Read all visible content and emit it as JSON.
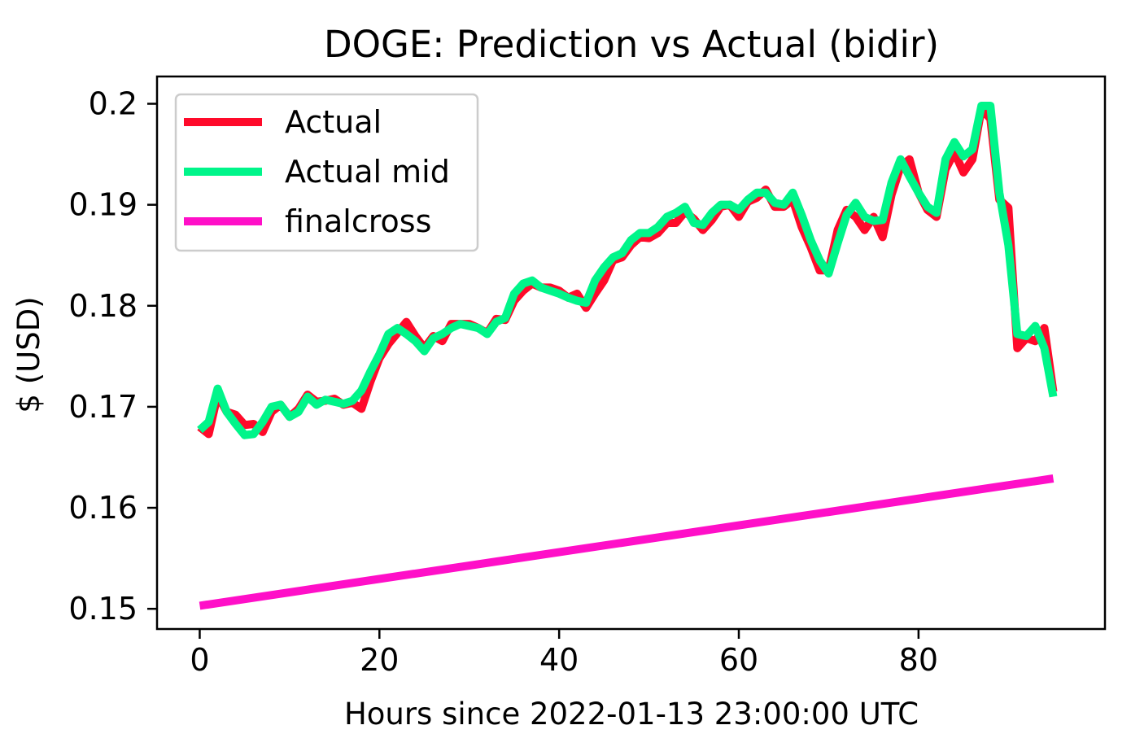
{
  "chart_data": {
    "type": "line",
    "title": "DOGE: Prediction vs Actual (bidir)",
    "xlabel": "Hours since 2022-01-13 23:00:00 UTC",
    "ylabel": "$ (USD)",
    "xlim": [
      -4.75,
      100.75
    ],
    "ylim": [
      0.148,
      0.2027
    ],
    "xticks": [
      0,
      20,
      40,
      60,
      80
    ],
    "xtick_labels": [
      "0",
      "20",
      "40",
      "60",
      "80"
    ],
    "yticks": [
      0.15,
      0.16,
      0.17,
      0.18,
      0.19,
      0.2
    ],
    "ytick_labels": [
      "0.15",
      "0.16",
      "0.17",
      "0.18",
      "0.19",
      "0.2"
    ],
    "grid": false,
    "legend_position": "upper-left",
    "series": [
      {
        "name": "Actual",
        "color": "#ff0a2a",
        "x": [
          0,
          1,
          2,
          3,
          4,
          5,
          6,
          7,
          8,
          9,
          10,
          11,
          12,
          13,
          14,
          15,
          16,
          17,
          18,
          19,
          20,
          21,
          22,
          23,
          24,
          25,
          26,
          27,
          28,
          29,
          30,
          31,
          32,
          33,
          34,
          35,
          36,
          37,
          38,
          39,
          40,
          41,
          42,
          43,
          44,
          45,
          46,
          47,
          48,
          49,
          50,
          51,
          52,
          53,
          54,
          55,
          56,
          57,
          58,
          59,
          60,
          61,
          62,
          63,
          64,
          65,
          66,
          67,
          68,
          69,
          70,
          71,
          72,
          73,
          74,
          75,
          76,
          77,
          78,
          79,
          80,
          81,
          82,
          83,
          84,
          85,
          86,
          87,
          88,
          89,
          90,
          91,
          92,
          93,
          94,
          95
        ],
        "y": [
          0.168,
          0.1673,
          0.1712,
          0.1695,
          0.1692,
          0.1682,
          0.1683,
          0.1675,
          0.1695,
          0.1702,
          0.169,
          0.1698,
          0.1712,
          0.1705,
          0.1706,
          0.1708,
          0.1702,
          0.1704,
          0.1698,
          0.1725,
          0.1748,
          0.1762,
          0.1773,
          0.1784,
          0.177,
          0.1758,
          0.177,
          0.1765,
          0.1782,
          0.1782,
          0.1782,
          0.1778,
          0.1773,
          0.1787,
          0.1786,
          0.1805,
          0.1815,
          0.1822,
          0.1818,
          0.1818,
          0.1815,
          0.1808,
          0.1812,
          0.1798,
          0.1812,
          0.1825,
          0.1845,
          0.1848,
          0.186,
          0.1868,
          0.1867,
          0.1872,
          0.1882,
          0.1882,
          0.1893,
          0.1886,
          0.1875,
          0.1885,
          0.1898,
          0.19,
          0.1888,
          0.1903,
          0.1907,
          0.1915,
          0.1898,
          0.1898,
          0.1905,
          0.1878,
          0.1858,
          0.1835,
          0.1835,
          0.1875,
          0.1895,
          0.1888,
          0.1875,
          0.1888,
          0.1868,
          0.191,
          0.1938,
          0.1945,
          0.1912,
          0.1895,
          0.1888,
          0.1935,
          0.1952,
          0.1932,
          0.1945,
          0.1995,
          0.1985,
          0.1905,
          0.1897,
          0.1758,
          0.1768,
          0.1765,
          0.1778,
          0.1715
        ]
      },
      {
        "name": "Actual mid",
        "color": "#00f58a",
        "x": [
          0,
          1,
          2,
          3,
          4,
          5,
          6,
          7,
          8,
          9,
          10,
          11,
          12,
          13,
          14,
          15,
          16,
          17,
          18,
          19,
          20,
          21,
          22,
          23,
          24,
          25,
          26,
          27,
          28,
          29,
          30,
          31,
          32,
          33,
          34,
          35,
          36,
          37,
          38,
          39,
          40,
          41,
          42,
          43,
          44,
          45,
          46,
          47,
          48,
          49,
          50,
          51,
          52,
          53,
          54,
          55,
          56,
          57,
          58,
          59,
          60,
          61,
          62,
          63,
          64,
          65,
          66,
          67,
          68,
          69,
          70,
          71,
          72,
          73,
          74,
          75,
          76,
          77,
          78,
          79,
          80,
          81,
          82,
          83,
          84,
          85,
          86,
          87,
          88,
          89,
          90,
          91,
          92,
          93,
          94,
          95
        ],
        "y": [
          0.1677,
          0.1685,
          0.1718,
          0.1695,
          0.1683,
          0.1672,
          0.1673,
          0.1685,
          0.17,
          0.1702,
          0.169,
          0.1695,
          0.171,
          0.1702,
          0.1707,
          0.1705,
          0.1703,
          0.1706,
          0.1716,
          0.1735,
          0.1752,
          0.1772,
          0.1778,
          0.1772,
          0.1765,
          0.1755,
          0.1768,
          0.1772,
          0.1778,
          0.1782,
          0.178,
          0.1778,
          0.1772,
          0.1784,
          0.1788,
          0.1812,
          0.1822,
          0.1825,
          0.1818,
          0.1815,
          0.1812,
          0.1808,
          0.1805,
          0.1803,
          0.1825,
          0.1838,
          0.1848,
          0.1852,
          0.1865,
          0.1872,
          0.1872,
          0.1878,
          0.1888,
          0.1892,
          0.1898,
          0.1882,
          0.188,
          0.1892,
          0.19,
          0.19,
          0.1895,
          0.1905,
          0.1912,
          0.1912,
          0.1902,
          0.19,
          0.1912,
          0.189,
          0.1865,
          0.1845,
          0.1832,
          0.1862,
          0.189,
          0.1902,
          0.1888,
          0.1884,
          0.1885,
          0.1922,
          0.1945,
          0.1928,
          0.1912,
          0.1898,
          0.1892,
          0.1945,
          0.1962,
          0.1948,
          0.1955,
          0.1998,
          0.1998,
          0.1912,
          0.186,
          0.1772,
          0.177,
          0.178,
          0.1758,
          0.171
        ]
      },
      {
        "name": "finalcross",
        "color": "#ff0fc8",
        "x": [
          0,
          95
        ],
        "y": [
          0.1503,
          0.1629
        ]
      }
    ]
  }
}
